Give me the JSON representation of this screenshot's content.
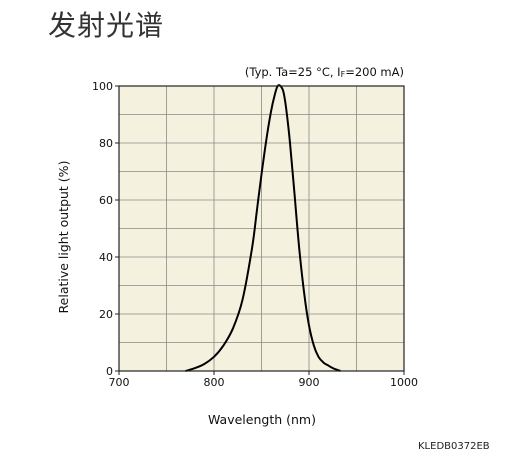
{
  "page": {
    "title": "发射光谱",
    "doc_code": "KLEDB0372EB"
  },
  "chart_data": {
    "type": "line",
    "conditions": "(Typ. Ta=25 °C, IF=200 mA)",
    "conditions_parts": {
      "prefix": "(Typ. Ta=25 °C, I",
      "subscript": "F",
      "suffix": "=200 mA)"
    },
    "xlabel": "Wavelength (nm)",
    "ylabel": "Relative light output (%)",
    "xlim": [
      700,
      1000
    ],
    "ylim": [
      0,
      100
    ],
    "x_ticks": [
      "700",
      "800",
      "900",
      "1000"
    ],
    "y_ticks": [
      "0",
      "20",
      "40",
      "60",
      "80",
      "100"
    ],
    "grid": true,
    "series": [
      {
        "color": "#000000",
        "x": [
          770,
          780,
          790,
          800,
          810,
          820,
          830,
          840,
          845,
          850,
          855,
          860,
          864,
          867,
          870,
          873,
          876,
          880,
          885,
          890,
          895,
          900,
          905,
          910,
          915,
          920,
          925,
          930,
          933
        ],
        "y": [
          0,
          1,
          2.5,
          5,
          9,
          15,
          25,
          43,
          56,
          69,
          81,
          91,
          97,
          100,
          100,
          98,
          92,
          80,
          61,
          42,
          27,
          16,
          9,
          5,
          3,
          2,
          1,
          0.4,
          0
        ]
      }
    ]
  }
}
